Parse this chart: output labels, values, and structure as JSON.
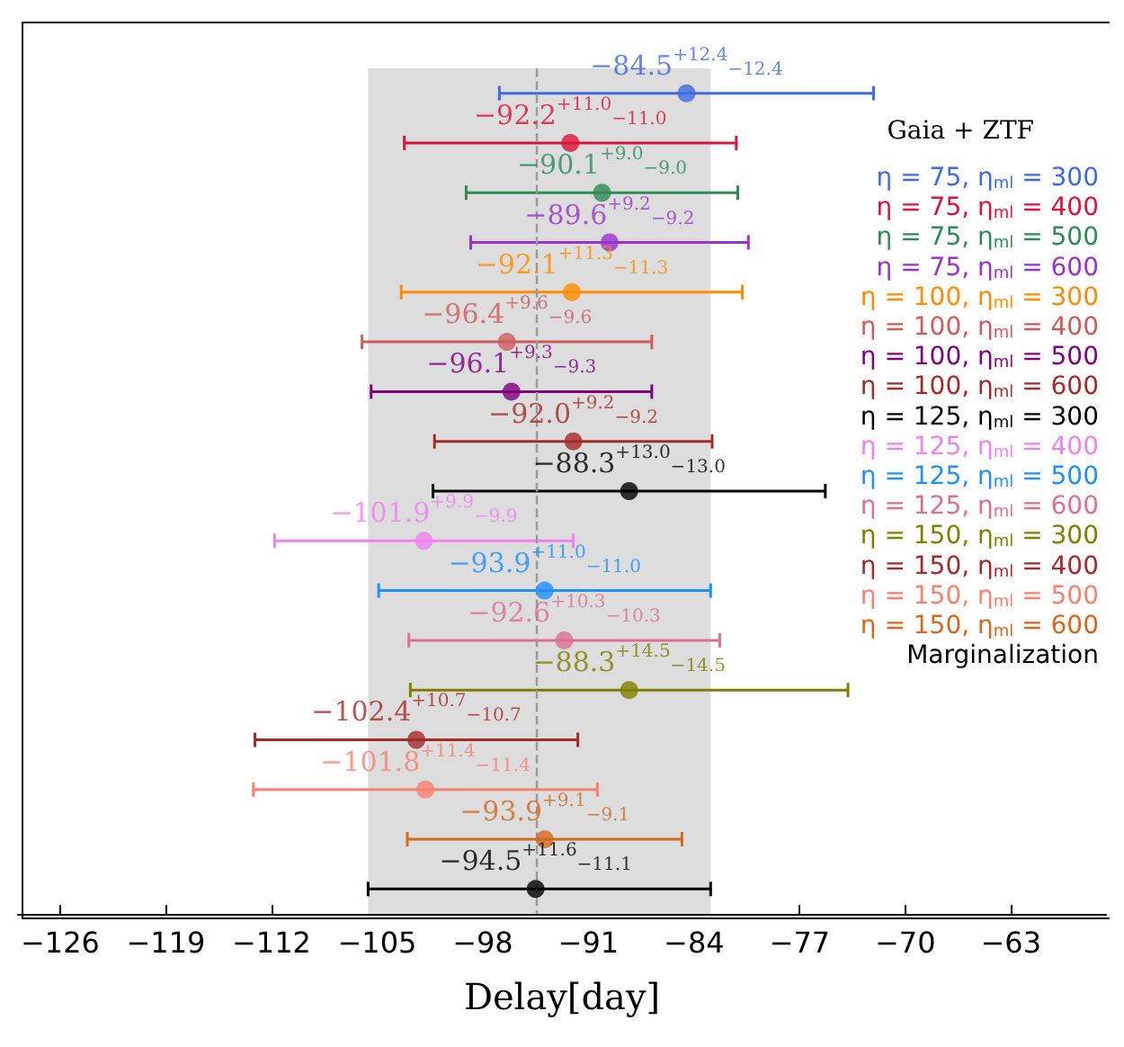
{
  "chart_data": {
    "type": "scatter",
    "orientation": "horizontal",
    "xlabel": "Delay[day]",
    "legend_title": "Gaia + ZTF",
    "marker": "circle",
    "grid": false,
    "tick_labels": "x",
    "categories": [
      null,
      null,
      null,
      null,
      null,
      null,
      null,
      null,
      null,
      null,
      null,
      null,
      null,
      null,
      null,
      null,
      null
    ],
    "xlim": [
      -128.8,
      -56.7
    ],
    "xticks": [
      -126,
      -119,
      -112,
      -105,
      -98,
      -91,
      -84,
      -77,
      -70,
      -63
    ],
    "ref_lines": [
      {
        "axis": "x",
        "value": -94.5,
        "color": "#999999",
        "line_style": "dashed"
      }
    ],
    "bands": [
      {
        "axis": "x",
        "from": -105.6,
        "to": -82.9,
        "color": "#dddddd"
      }
    ],
    "series": [
      {
        "name": "η = 75, η$_{ml}$ = 300",
        "color": "#4169e1",
        "values": [
          -84.5,
          null,
          null,
          null,
          null,
          null,
          null,
          null,
          null,
          null,
          null,
          null,
          null,
          null,
          null,
          null,
          null
        ],
        "errors": [
          12.4,
          null,
          null,
          null,
          null,
          null,
          null,
          null,
          null,
          null,
          null,
          null,
          null,
          null,
          null,
          null,
          null
        ],
        "value_labels": [
          "−84.5$^{+12.4}$$_{−12.4}$",
          null,
          null,
          null,
          null,
          null,
          null,
          null,
          null,
          null,
          null,
          null,
          null,
          null,
          null,
          null,
          null
        ]
      },
      {
        "name": "η = 75, η$_{ml}$ = 400",
        "color": "#dc143c",
        "values": [
          null,
          -92.2,
          null,
          null,
          null,
          null,
          null,
          null,
          null,
          null,
          null,
          null,
          null,
          null,
          null,
          null,
          null
        ],
        "errors": [
          null,
          11.0,
          null,
          null,
          null,
          null,
          null,
          null,
          null,
          null,
          null,
          null,
          null,
          null,
          null,
          null,
          null
        ],
        "value_labels": [
          null,
          "−92.2$^{+11.0}$$_{−11.0}$",
          null,
          null,
          null,
          null,
          null,
          null,
          null,
          null,
          null,
          null,
          null,
          null,
          null,
          null,
          null
        ]
      },
      {
        "name": "η = 75, η$_{ml}$ = 500",
        "color": "#2e8b57",
        "values": [
          null,
          null,
          -90.1,
          null,
          null,
          null,
          null,
          null,
          null,
          null,
          null,
          null,
          null,
          null,
          null,
          null,
          null
        ],
        "errors": [
          null,
          null,
          9.0,
          null,
          null,
          null,
          null,
          null,
          null,
          null,
          null,
          null,
          null,
          null,
          null,
          null,
          null
        ],
        "value_labels": [
          null,
          null,
          "−90.1$^{+9.0}$$_{−9.0}$",
          null,
          null,
          null,
          null,
          null,
          null,
          null,
          null,
          null,
          null,
          null,
          null,
          null,
          null
        ]
      },
      {
        "name": "η = 75, η$_{ml}$ = 600",
        "color": "#9932cc",
        "values": [
          null,
          null,
          null,
          -89.6,
          null,
          null,
          null,
          null,
          null,
          null,
          null,
          null,
          null,
          null,
          null,
          null,
          null
        ],
        "errors": [
          null,
          null,
          null,
          9.2,
          null,
          null,
          null,
          null,
          null,
          null,
          null,
          null,
          null,
          null,
          null,
          null,
          null
        ],
        "value_labels": [
          null,
          null,
          null,
          "−89.6$^{+9.2}$$_{−9.2}$",
          null,
          null,
          null,
          null,
          null,
          null,
          null,
          null,
          null,
          null,
          null,
          null,
          null
        ]
      },
      {
        "name": "η = 100, η$_{ml}$ = 300",
        "color": "#ff8c00",
        "values": [
          null,
          null,
          null,
          null,
          -92.1,
          null,
          null,
          null,
          null,
          null,
          null,
          null,
          null,
          null,
          null,
          null,
          null
        ],
        "errors": [
          null,
          null,
          null,
          null,
          11.3,
          null,
          null,
          null,
          null,
          null,
          null,
          null,
          null,
          null,
          null,
          null,
          null
        ],
        "value_labels": [
          null,
          null,
          null,
          null,
          "−92.1$^{+11.3}$$_{−11.3}$",
          null,
          null,
          null,
          null,
          null,
          null,
          null,
          null,
          null,
          null,
          null,
          null
        ]
      },
      {
        "name": "η = 100, η$_{ml}$ = 400",
        "color": "#cd5c5c",
        "values": [
          null,
          null,
          null,
          null,
          null,
          -96.4,
          null,
          null,
          null,
          null,
          null,
          null,
          null,
          null,
          null,
          null,
          null
        ],
        "errors": [
          null,
          null,
          null,
          null,
          null,
          9.6,
          null,
          null,
          null,
          null,
          null,
          null,
          null,
          null,
          null,
          null,
          null
        ],
        "value_labels": [
          null,
          null,
          null,
          null,
          null,
          "−96.4$^{+9.6}$$_{−9.6}$",
          null,
          null,
          null,
          null,
          null,
          null,
          null,
          null,
          null,
          null,
          null
        ]
      },
      {
        "name": "η = 100, η$_{ml}$ = 500",
        "color": "#800080",
        "values": [
          null,
          null,
          null,
          null,
          null,
          null,
          -96.1,
          null,
          null,
          null,
          null,
          null,
          null,
          null,
          null,
          null,
          null
        ],
        "errors": [
          null,
          null,
          null,
          null,
          null,
          null,
          9.3,
          null,
          null,
          null,
          null,
          null,
          null,
          null,
          null,
          null,
          null
        ],
        "value_labels": [
          null,
          null,
          null,
          null,
          null,
          null,
          "−96.1$^{+9.3}$$_{−9.3}$",
          null,
          null,
          null,
          null,
          null,
          null,
          null,
          null,
          null,
          null
        ]
      },
      {
        "name": "η = 100, η$_{ml}$ = 600",
        "color": "#a52a2a",
        "values": [
          null,
          null,
          null,
          null,
          null,
          null,
          null,
          -92.0,
          null,
          null,
          null,
          null,
          null,
          null,
          null,
          null,
          null
        ],
        "errors": [
          null,
          null,
          null,
          null,
          null,
          null,
          null,
          9.2,
          null,
          null,
          null,
          null,
          null,
          null,
          null,
          null,
          null
        ],
        "value_labels": [
          null,
          null,
          null,
          null,
          null,
          null,
          null,
          "−92.0$^{+9.2}$$_{−9.2}$",
          null,
          null,
          null,
          null,
          null,
          null,
          null,
          null,
          null
        ]
      },
      {
        "name": "η = 125, η$_{ml}$ = 300",
        "color": "#000000",
        "values": [
          null,
          null,
          null,
          null,
          null,
          null,
          null,
          null,
          -88.3,
          null,
          null,
          null,
          null,
          null,
          null,
          null,
          null
        ],
        "errors": [
          null,
          null,
          null,
          null,
          null,
          null,
          null,
          null,
          13.0,
          null,
          null,
          null,
          null,
          null,
          null,
          null,
          null
        ],
        "value_labels": [
          null,
          null,
          null,
          null,
          null,
          null,
          null,
          null,
          "−88.3$^{+13.0}$$_{−13.0}$",
          null,
          null,
          null,
          null,
          null,
          null,
          null,
          null
        ]
      },
      {
        "name": "η = 125, η$_{ml}$ = 400",
        "color": "#ee82ee",
        "values": [
          null,
          null,
          null,
          null,
          null,
          null,
          null,
          null,
          null,
          -101.9,
          null,
          null,
          null,
          null,
          null,
          null,
          null
        ],
        "errors": [
          null,
          null,
          null,
          null,
          null,
          null,
          null,
          null,
          null,
          9.9,
          null,
          null,
          null,
          null,
          null,
          null,
          null
        ],
        "value_labels": [
          null,
          null,
          null,
          null,
          null,
          null,
          null,
          null,
          null,
          "−101.9$^{+9.9}$$_{−9.9}$",
          null,
          null,
          null,
          null,
          null,
          null,
          null
        ]
      },
      {
        "name": "η = 125, η$_{ml}$ = 500",
        "color": "#1e90ff",
        "values": [
          null,
          null,
          null,
          null,
          null,
          null,
          null,
          null,
          null,
          null,
          -93.9,
          null,
          null,
          null,
          null,
          null,
          null
        ],
        "errors": [
          null,
          null,
          null,
          null,
          null,
          null,
          null,
          null,
          null,
          null,
          11.0,
          null,
          null,
          null,
          null,
          null,
          null
        ],
        "value_labels": [
          null,
          null,
          null,
          null,
          null,
          null,
          null,
          null,
          null,
          null,
          "−93.9$^{+11.0}$$_{−11.0}$",
          null,
          null,
          null,
          null,
          null,
          null
        ]
      },
      {
        "name": "η = 125, η$_{ml}$ = 600",
        "color": "#db7093",
        "values": [
          null,
          null,
          null,
          null,
          null,
          null,
          null,
          null,
          null,
          null,
          null,
          -92.6,
          null,
          null,
          null,
          null,
          null
        ],
        "errors": [
          null,
          null,
          null,
          null,
          null,
          null,
          null,
          null,
          null,
          null,
          null,
          10.3,
          null,
          null,
          null,
          null,
          null
        ],
        "value_labels": [
          null,
          null,
          null,
          null,
          null,
          null,
          null,
          null,
          null,
          null,
          null,
          "−92.6$^{+10.3}$$_{−10.3}$",
          null,
          null,
          null,
          null,
          null
        ]
      },
      {
        "name": "η = 150, η$_{ml}$ = 300",
        "color": "#808000",
        "values": [
          null,
          null,
          null,
          null,
          null,
          null,
          null,
          null,
          null,
          null,
          null,
          null,
          -88.3,
          null,
          null,
          null,
          null
        ],
        "errors": [
          null,
          null,
          null,
          null,
          null,
          null,
          null,
          null,
          null,
          null,
          null,
          null,
          14.5,
          null,
          null,
          null,
          null
        ],
        "value_labels": [
          null,
          null,
          null,
          null,
          null,
          null,
          null,
          null,
          null,
          null,
          null,
          null,
          "−88.3$^{+14.5}$$_{−14.5}$",
          null,
          null,
          null,
          null
        ]
      },
      {
        "name": "η = 150, η$_{ml}$ = 400",
        "color": "#a52a2a",
        "values": [
          null,
          null,
          null,
          null,
          null,
          null,
          null,
          null,
          null,
          null,
          null,
          null,
          null,
          -102.4,
          null,
          null,
          null
        ],
        "errors": [
          null,
          null,
          null,
          null,
          null,
          null,
          null,
          null,
          null,
          null,
          null,
          null,
          null,
          10.7,
          null,
          null,
          null
        ],
        "value_labels": [
          null,
          null,
          null,
          null,
          null,
          null,
          null,
          null,
          null,
          null,
          null,
          null,
          null,
          "−102.4$^{+10.7}$$_{−10.7}$",
          null,
          null,
          null
        ]
      },
      {
        "name": "η = 150, η$_{ml}$ = 500",
        "color": "#fa8072",
        "values": [
          null,
          null,
          null,
          null,
          null,
          null,
          null,
          null,
          null,
          null,
          null,
          null,
          null,
          null,
          -101.8,
          null,
          null
        ],
        "errors": [
          null,
          null,
          null,
          null,
          null,
          null,
          null,
          null,
          null,
          null,
          null,
          null,
          null,
          null,
          11.4,
          null,
          null
        ],
        "value_labels": [
          null,
          null,
          null,
          null,
          null,
          null,
          null,
          null,
          null,
          null,
          null,
          null,
          null,
          null,
          "−101.8$^{+11.4}$$_{−11.4}$",
          null,
          null
        ]
      },
      {
        "name": "η = 150, η$_{ml}$ = 600",
        "color": "#d2691e",
        "values": [
          null,
          null,
          null,
          null,
          null,
          null,
          null,
          null,
          null,
          null,
          null,
          null,
          null,
          null,
          null,
          -93.9,
          null
        ],
        "errors": [
          null,
          null,
          null,
          null,
          null,
          null,
          null,
          null,
          null,
          null,
          null,
          null,
          null,
          null,
          null,
          9.1,
          null
        ],
        "value_labels": [
          null,
          null,
          null,
          null,
          null,
          null,
          null,
          null,
          null,
          null,
          null,
          null,
          null,
          null,
          null,
          "−93.9$^{+9.1}$$_{−9.1}$",
          null
        ]
      },
      {
        "name": "Marginalization",
        "color": "#000000",
        "values": [
          null,
          null,
          null,
          null,
          null,
          null,
          null,
          null,
          null,
          null,
          null,
          null,
          null,
          null,
          null,
          null,
          -94.5
        ],
        "errors": [
          null,
          null,
          null,
          null,
          null,
          null,
          null,
          null,
          null,
          null,
          null,
          null,
          null,
          null,
          null,
          null,
          [
            -105.6,
            -82.9
          ]
        ],
        "value_labels": [
          null,
          null,
          null,
          null,
          null,
          null,
          null,
          null,
          null,
          null,
          null,
          null,
          null,
          null,
          null,
          null,
          "−94.5$^{+11.6}$$_{−11.1}$"
        ]
      }
    ]
  }
}
